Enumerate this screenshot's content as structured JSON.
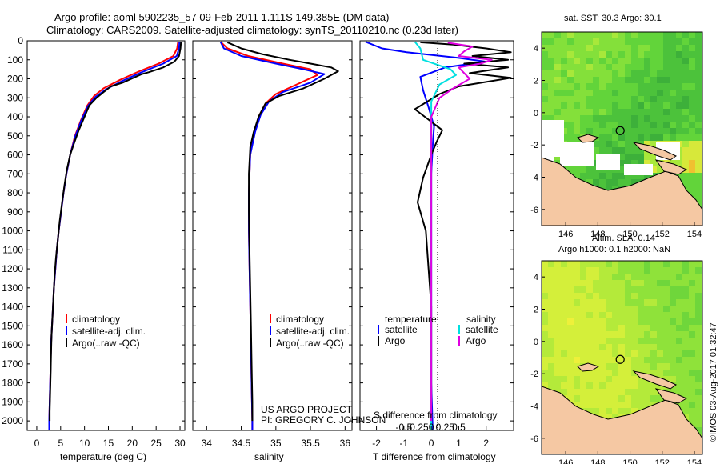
{
  "header": {
    "title_line1": "Argo profile: aoml 5902235_57 09-Feb-2011 1.111S 149.385E (DM data)",
    "title_line2": "Climatology: CARS2009. Satellite-adjusted climatology: synTS_20110210.nc (0.23d later)"
  },
  "credit": "©IMOS 03-Aug-2017 01:32:47",
  "project_note": {
    "line1": "US ARGO PROJECT",
    "line2": "PI: GREGORY C. JOHNSON"
  },
  "colors": {
    "climatology": "#ff0000",
    "satellite": "#0000ff",
    "argo": "#000000",
    "sat_salinity": "#00e0e0",
    "argo_salinity": "#e000e0",
    "land": "#f5c8a3",
    "landmask_white": "#ffffff"
  },
  "chart_data": [
    {
      "type": "line",
      "name": "temperature",
      "xlabel": "temperature (deg C)",
      "ylabel": "",
      "xlim": [
        -2,
        31
      ],
      "ylim": [
        2050,
        0
      ],
      "xticks": [
        "0",
        "5",
        "10",
        "15",
        "20",
        "25",
        "30"
      ],
      "yticks": [
        "0",
        "100",
        "200",
        "300",
        "400",
        "500",
        "600",
        "700",
        "800",
        "900",
        "1000",
        "1100",
        "1200",
        "1300",
        "1400",
        "1500",
        "1600",
        "1700",
        "1800",
        "1900",
        "2000"
      ],
      "legend": [
        "climatology",
        "satellite-adj. clim.",
        "Argo(..raw -QC)"
      ],
      "series": [
        {
          "name": "climatology",
          "color": "#ff0000",
          "points": [
            [
              29.6,
              5
            ],
            [
              29.4,
              40
            ],
            [
              28.6,
              80
            ],
            [
              25.5,
              120
            ],
            [
              21.5,
              160
            ],
            [
              17.5,
              205
            ],
            [
              14.0,
              250
            ],
            [
              12.0,
              290
            ],
            [
              10.6,
              340
            ],
            [
              9.2,
              420
            ],
            [
              8.0,
              500
            ],
            [
              7.0,
              600
            ],
            [
              6.2,
              700
            ],
            [
              5.6,
              800
            ],
            [
              5.1,
              900
            ],
            [
              4.6,
              1000
            ],
            [
              4.2,
              1100
            ],
            [
              3.9,
              1200
            ],
            [
              3.6,
              1300
            ],
            [
              3.4,
              1400
            ],
            [
              3.2,
              1500
            ],
            [
              3.0,
              1600
            ],
            [
              2.9,
              1700
            ],
            [
              2.8,
              1800
            ],
            [
              2.7,
              1900
            ],
            [
              2.6,
              2000
            ],
            [
              2.6,
              2050
            ]
          ]
        },
        {
          "name": "satellite-adj. clim.",
          "color": "#0000ff",
          "points": [
            [
              29.9,
              5
            ],
            [
              29.8,
              40
            ],
            [
              29.3,
              80
            ],
            [
              26.5,
              120
            ],
            [
              22.0,
              165
            ],
            [
              18.0,
              210
            ],
            [
              14.5,
              255
            ],
            [
              12.3,
              295
            ],
            [
              10.8,
              340
            ],
            [
              9.3,
              420
            ],
            [
              8.1,
              500
            ],
            [
              7.0,
              600
            ],
            [
              6.2,
              700
            ],
            [
              5.6,
              800
            ],
            [
              5.1,
              900
            ],
            [
              4.6,
              1000
            ],
            [
              4.2,
              1100
            ],
            [
              3.9,
              1200
            ],
            [
              3.6,
              1300
            ],
            [
              3.4,
              1400
            ],
            [
              3.2,
              1500
            ],
            [
              3.0,
              1600
            ],
            [
              2.9,
              1700
            ],
            [
              2.8,
              1800
            ],
            [
              2.7,
              1900
            ],
            [
              2.6,
              2000
            ],
            [
              2.6,
              2050
            ]
          ]
        },
        {
          "name": "Argo(..raw -QC)",
          "color": "#000000",
          "points": [
            [
              30.2,
              8
            ],
            [
              30.1,
              40
            ],
            [
              29.8,
              80
            ],
            [
              28.8,
              110
            ],
            [
              26.5,
              140
            ],
            [
              23.5,
              165
            ],
            [
              22.0,
              175
            ],
            [
              18.0,
              220
            ],
            [
              15.5,
              240
            ],
            [
              14.0,
              270
            ],
            [
              12.5,
              300
            ],
            [
              11.0,
              340
            ],
            [
              10.0,
              400
            ],
            [
              8.8,
              470
            ],
            [
              7.8,
              540
            ],
            [
              7.0,
              600
            ],
            [
              6.3,
              680
            ],
            [
              5.8,
              760
            ],
            [
              5.3,
              850
            ],
            [
              4.8,
              950
            ],
            [
              4.4,
              1050
            ],
            [
              4.0,
              1150
            ],
            [
              3.7,
              1250
            ],
            [
              3.5,
              1350
            ],
            [
              3.3,
              1450
            ],
            [
              3.1,
              1550
            ],
            [
              3.0,
              1650
            ],
            [
              2.9,
              1750
            ],
            [
              2.8,
              1850
            ],
            [
              2.7,
              1950
            ],
            [
              2.7,
              2000
            ]
          ]
        }
      ]
    },
    {
      "type": "line",
      "name": "salinity",
      "xlabel": "salinity",
      "xlim": [
        33.8,
        36.1
      ],
      "ylim": [
        2050,
        0
      ],
      "xticks": [
        "34",
        "34.5",
        "35",
        "35.5",
        "36"
      ],
      "legend": [
        "climatology",
        "satellite-adj. clim.",
        "Argo(..raw -QC)"
      ],
      "series": [
        {
          "name": "climatology",
          "color": "#ff0000",
          "points": [
            [
              34.2,
              5
            ],
            [
              34.3,
              40
            ],
            [
              34.6,
              80
            ],
            [
              35.1,
              120
            ],
            [
              35.5,
              150
            ],
            [
              35.6,
              180
            ],
            [
              35.3,
              230
            ],
            [
              35.0,
              280
            ],
            [
              34.85,
              330
            ],
            [
              34.75,
              400
            ],
            [
              34.68,
              500
            ],
            [
              34.63,
              600
            ],
            [
              34.61,
              800
            ],
            [
              34.61,
              1000
            ],
            [
              34.62,
              1200
            ],
            [
              34.63,
              1400
            ],
            [
              34.64,
              1600
            ],
            [
              34.65,
              1800
            ],
            [
              34.66,
              2000
            ],
            [
              34.66,
              2050
            ]
          ]
        },
        {
          "name": "satellite-adj. clim.",
          "color": "#0000ff",
          "points": [
            [
              34.2,
              5
            ],
            [
              34.25,
              40
            ],
            [
              34.5,
              80
            ],
            [
              35.0,
              120
            ],
            [
              35.4,
              150
            ],
            [
              35.7,
              175
            ],
            [
              35.5,
              220
            ],
            [
              35.1,
              270
            ],
            [
              34.9,
              320
            ],
            [
              34.78,
              390
            ],
            [
              34.7,
              480
            ],
            [
              34.63,
              600
            ],
            [
              34.61,
              800
            ],
            [
              34.61,
              1000
            ],
            [
              34.62,
              1200
            ],
            [
              34.63,
              1400
            ],
            [
              34.64,
              1600
            ],
            [
              34.65,
              1800
            ],
            [
              34.66,
              2000
            ],
            [
              34.66,
              2050
            ]
          ]
        },
        {
          "name": "Argo(..raw -QC)",
          "color": "#000000",
          "points": [
            [
              34.3,
              8
            ],
            [
              34.5,
              40
            ],
            [
              34.8,
              70
            ],
            [
              35.2,
              100
            ],
            [
              35.5,
              120
            ],
            [
              35.8,
              140
            ],
            [
              35.9,
              160
            ],
            [
              35.7,
              200
            ],
            [
              35.4,
              250
            ],
            [
              35.05,
              290
            ],
            [
              34.85,
              330
            ],
            [
              34.75,
              400
            ],
            [
              34.68,
              480
            ],
            [
              34.63,
              560
            ],
            [
              34.61,
              700
            ],
            [
              34.61,
              900
            ],
            [
              34.62,
              1100
            ],
            [
              34.63,
              1300
            ],
            [
              34.64,
              1500
            ],
            [
              34.65,
              1700
            ],
            [
              34.66,
              1900
            ],
            [
              34.66,
              2000
            ]
          ]
        }
      ]
    },
    {
      "type": "line",
      "name": "difference",
      "xlabel": "T difference from climatology",
      "xlabel2": "S difference from climatology",
      "xlim": [
        -2.6,
        3.0
      ],
      "ylim": [
        2050,
        0
      ],
      "xticks": [
        "-2",
        "-1",
        "0",
        "1",
        "2"
      ],
      "xticks_salinity": [
        "-0.5",
        "-0.25",
        "0",
        "0.25",
        "0.5"
      ],
      "legend_headers": [
        "temperature",
        "salinity"
      ],
      "legend": [
        "satellite",
        "Argo",
        "satellite",
        "Argo"
      ],
      "series": [
        {
          "name": "T satellite",
          "color": "#0000ff",
          "points": [
            [
              -2.4,
              5
            ],
            [
              -1.8,
              40
            ],
            [
              -0.9,
              60
            ],
            [
              1.0,
              90
            ],
            [
              2.0,
              110
            ],
            [
              0.5,
              140
            ],
            [
              -0.4,
              190
            ],
            [
              -0.3,
              260
            ],
            [
              -0.1,
              350
            ],
            [
              0.1,
              450
            ],
            [
              0.05,
              550
            ],
            [
              0.0,
              700
            ],
            [
              0.0,
              900
            ],
            [
              0.0,
              1200
            ],
            [
              0.0,
              1500
            ],
            [
              0.0,
              1800
            ],
            [
              0.05,
              2050
            ]
          ]
        },
        {
          "name": "T Argo",
          "color": "#000000",
          "points": [
            [
              -0.4,
              8
            ],
            [
              0.8,
              20
            ],
            [
              2.0,
              40
            ],
            [
              2.9,
              60
            ],
            [
              1.5,
              80
            ],
            [
              2.8,
              100
            ],
            [
              1.2,
              120
            ],
            [
              2.8,
              140
            ],
            [
              1.4,
              170
            ],
            [
              2.9,
              195
            ],
            [
              1.0,
              240
            ],
            [
              0.3,
              280
            ],
            [
              -0.6,
              360
            ],
            [
              0.4,
              470
            ],
            [
              0.2,
              530
            ],
            [
              0.0,
              600
            ],
            [
              -0.3,
              720
            ],
            [
              -0.5,
              850
            ],
            [
              -0.2,
              1000
            ],
            [
              -0.1,
              1200
            ],
            [
              0.0,
              1400
            ],
            [
              0.0,
              1600
            ],
            [
              0.0,
              1800
            ],
            [
              0.0,
              2000
            ]
          ]
        },
        {
          "name": "S satellite",
          "color": "#00e0e0",
          "points": [
            [
              -0.6,
              5
            ],
            [
              -0.4,
              40
            ],
            [
              -0.3,
              100
            ],
            [
              0.7,
              150
            ],
            [
              0.9,
              180
            ],
            [
              0.3,
              230
            ],
            [
              0.0,
              320
            ],
            [
              0.0,
              500
            ],
            [
              0.0,
              800
            ],
            [
              0.0,
              1200
            ],
            [
              0.0,
              1600
            ],
            [
              0.0,
              2050
            ]
          ]
        },
        {
          "name": "S Argo",
          "color": "#e000e0",
          "points": [
            [
              0.6,
              10
            ],
            [
              1.5,
              30
            ],
            [
              1.2,
              55
            ],
            [
              1.0,
              80
            ],
            [
              2.2,
              100
            ],
            [
              1.8,
              120
            ],
            [
              1.0,
              140
            ],
            [
              1.4,
              200
            ],
            [
              0.8,
              250
            ],
            [
              0.3,
              300
            ],
            [
              0.0,
              400
            ],
            [
              0.0,
              700
            ],
            [
              0.0,
              1100
            ],
            [
              0.0,
              1600
            ],
            [
              0.0,
              2000
            ]
          ]
        }
      ]
    },
    {
      "type": "heatmap",
      "name": "sst_map",
      "title": "sat. SST: 30.3 Argo: 30.1",
      "xlim": [
        144.5,
        154.5
      ],
      "ylim": [
        -7,
        5
      ],
      "xticks": [
        "146",
        "148",
        "150",
        "152",
        "154"
      ],
      "yticks": [
        "4",
        "2",
        "0",
        "-2",
        "-4",
        "-6"
      ],
      "marker": {
        "lon": 149.385,
        "lat": -1.111
      }
    },
    {
      "type": "heatmap",
      "name": "sla_map",
      "title_line1": "Altim. SLA: 0.14",
      "title_line2": "Argo h1000: 0.1 h2000: NaN",
      "xlim": [
        144.5,
        154.5
      ],
      "ylim": [
        -7,
        5
      ],
      "xticks": [
        "146",
        "148",
        "150",
        "152",
        "154"
      ],
      "yticks": [
        "4",
        "2",
        "0",
        "-2",
        "-4",
        "-6"
      ],
      "marker": {
        "lon": 149.385,
        "lat": -1.111
      }
    }
  ]
}
